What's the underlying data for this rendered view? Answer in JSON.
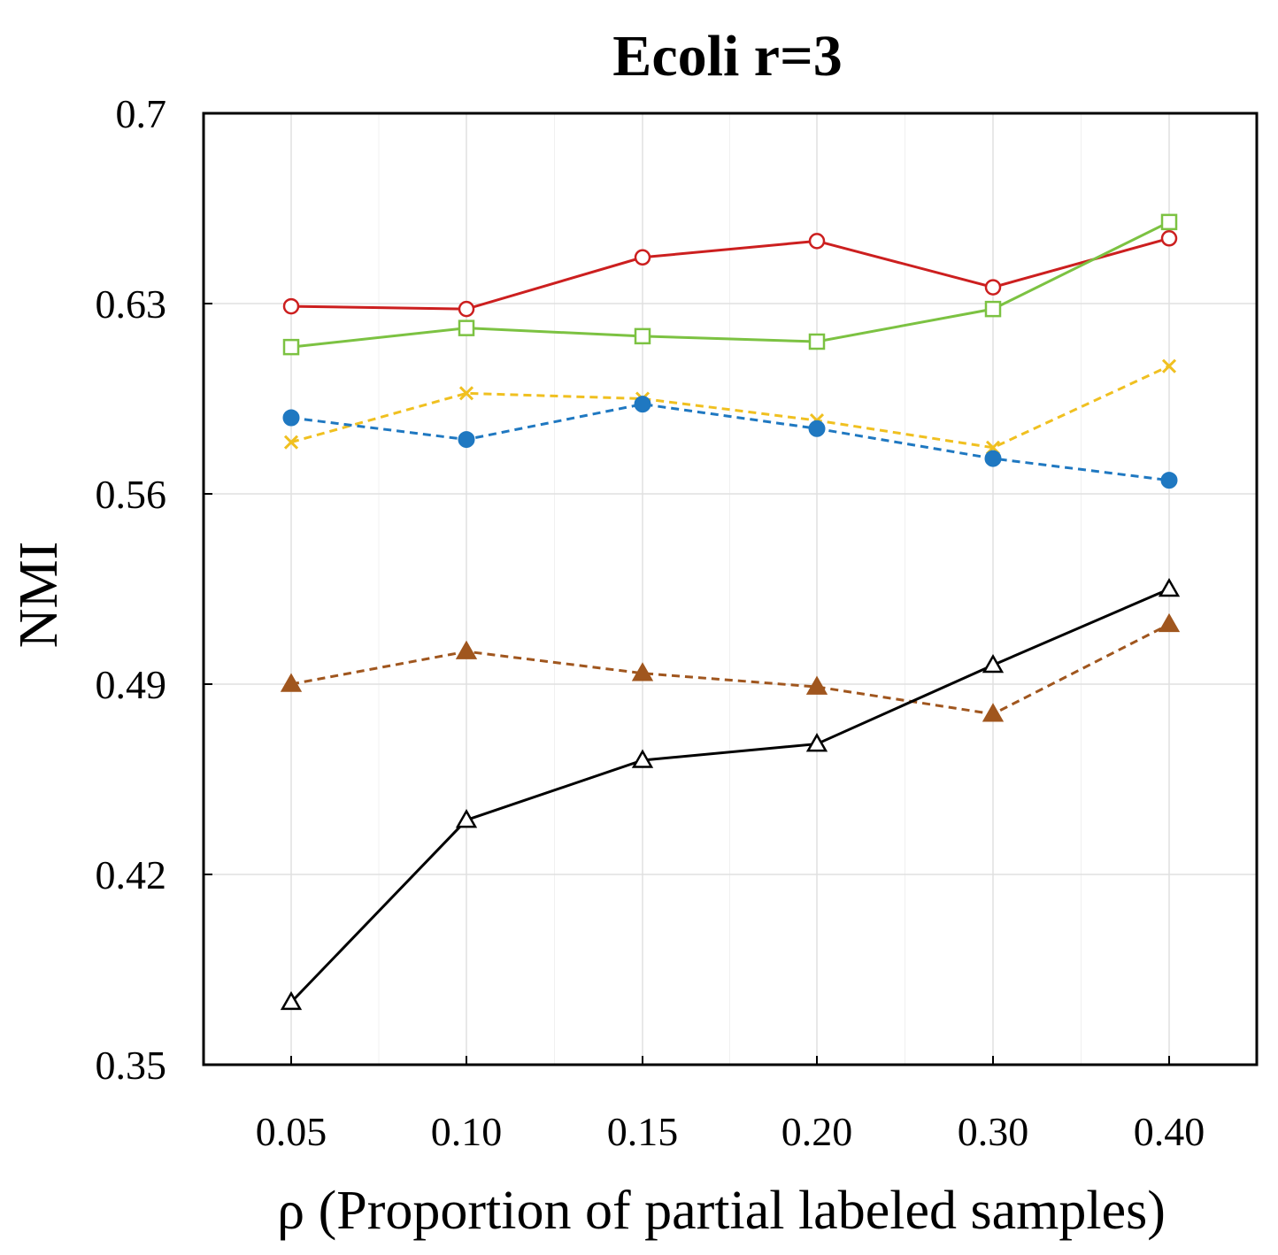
{
  "chart_data": {
    "type": "line",
    "title": "Ecoli r=3",
    "xlabel": "ρ (Proportion of partial labeled samples)",
    "ylabel": "NMI",
    "categories": [
      "0.05",
      "0.10",
      "0.15",
      "0.20",
      "0.30",
      "0.40"
    ],
    "yticks": [
      "0.35",
      "0.42",
      "0.49",
      "0.56",
      "0.63",
      "0.7"
    ],
    "ylim": [
      0.35,
      0.7
    ],
    "grid": true,
    "series": [
      {
        "name": "red-circle",
        "color": "#cc1f1f",
        "marker": "circle-open",
        "dashed": false,
        "values": [
          0.629,
          0.628,
          0.647,
          0.653,
          0.636,
          0.654
        ]
      },
      {
        "name": "green-square",
        "color": "#7cc242",
        "marker": "square-open",
        "dashed": false,
        "values": [
          0.614,
          0.621,
          0.618,
          0.616,
          0.628,
          0.66
        ]
      },
      {
        "name": "yellow-x",
        "color": "#f0c020",
        "marker": "x",
        "dashed": true,
        "values": [
          0.579,
          0.597,
          0.595,
          0.587,
          0.577,
          0.607
        ]
      },
      {
        "name": "blue-dot",
        "color": "#1f78c1",
        "marker": "circle-filled",
        "dashed": true,
        "values": [
          0.588,
          0.58,
          0.593,
          0.584,
          0.573,
          0.565
        ]
      },
      {
        "name": "brown-triangle",
        "color": "#a0561e",
        "marker": "triangle-filled",
        "dashed": true,
        "values": [
          0.49,
          0.502,
          0.494,
          0.489,
          0.479,
          0.512
        ]
      },
      {
        "name": "black-triangle",
        "color": "#000000",
        "marker": "triangle-open",
        "dashed": false,
        "values": [
          0.373,
          0.44,
          0.462,
          0.468,
          0.497,
          0.525
        ]
      }
    ]
  }
}
